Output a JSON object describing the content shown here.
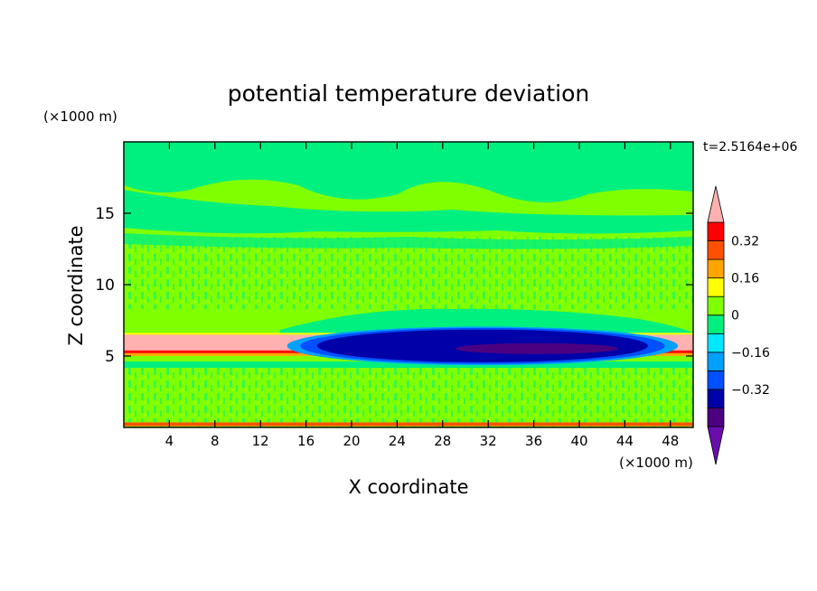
{
  "chart_data": {
    "type": "heatmap",
    "title": "potential temperature deviation",
    "xlabel": "X coordinate",
    "ylabel": "Z coordinate",
    "x_unit": "(×1000 m)",
    "y_unit": "(×1000 m)",
    "time_label": "t=2.5164e+06",
    "xlim": [
      0,
      50
    ],
    "ylim": [
      0,
      20
    ],
    "x_ticks": [
      4,
      8,
      12,
      16,
      20,
      24,
      28,
      32,
      36,
      40,
      44,
      48
    ],
    "y_ticks": [
      5,
      10,
      15
    ],
    "colorbar": {
      "levels": [
        -0.48,
        -0.4,
        -0.32,
        -0.24,
        -0.16,
        -0.08,
        0,
        0.08,
        0.16,
        0.24,
        0.32,
        0.4
      ],
      "labeled_levels": [
        -0.32,
        -0.16,
        0,
        0.16,
        0.32
      ],
      "colors": {
        "below_min": "#6a0dad",
        "bins": [
          "#4b0082",
          "#0000a8",
          "#0050ff",
          "#00a0ff",
          "#00e8ff",
          "#00f080",
          "#80ff00",
          "#ffff00",
          "#ffa500",
          "#ff5000",
          "#ff0000"
        ],
        "above_max": "#ffb0b0"
      }
    },
    "features": {
      "background_value": 0.04,
      "upper_band_value": -0.04,
      "warm_layer": {
        "x_range": [
          0,
          50
        ],
        "z_range": [
          5.2,
          6.5
        ],
        "value": 0.44
      },
      "cold_pool": {
        "x_range": [
          15,
          48
        ],
        "z_range": [
          4.6,
          7.2
        ],
        "value": -0.36
      }
    }
  }
}
